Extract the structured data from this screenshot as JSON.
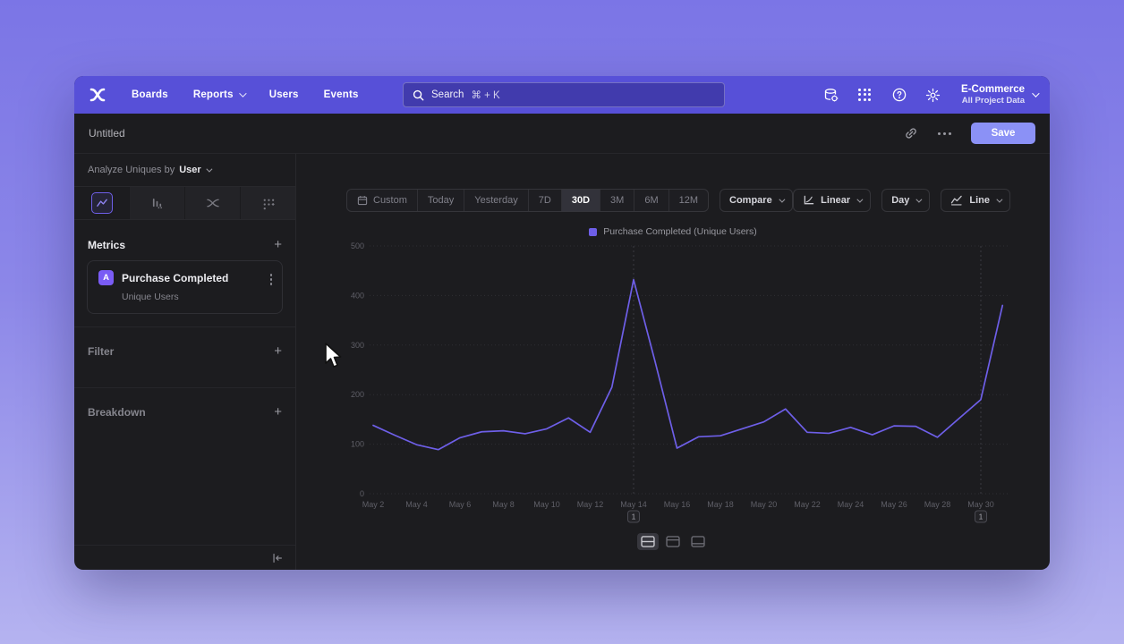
{
  "nav": {
    "items": [
      "Boards",
      "Reports",
      "Users",
      "Events"
    ],
    "search": {
      "label": "Search",
      "shortcut": "⌘ + K"
    },
    "project": {
      "name": "E-Commerce",
      "scope": "All Project Data"
    }
  },
  "toolbar": {
    "title": "Untitled",
    "save": "Save"
  },
  "sidebar": {
    "analyze_prefix": "Analyze Uniques by",
    "analyze_value": "User",
    "metrics_header": "Metrics",
    "add": "+",
    "metric": {
      "badge": "A",
      "title": "Purchase Completed",
      "subtitle": "Unique Users"
    },
    "filter_header": "Filter",
    "breakdown_header": "Breakdown"
  },
  "controls": {
    "ranges": [
      "Custom",
      "Today",
      "Yesterday",
      "7D",
      "30D",
      "3M",
      "6M",
      "12M"
    ],
    "selected_range": "30D",
    "compare": "Compare",
    "scale": "Linear",
    "granularity": "Day",
    "chart_type": "Line"
  },
  "colors": {
    "nav_bg": "#5750d8",
    "save_bg": "#8b91f6",
    "accent": "#6e5fe8"
  },
  "chart_data": {
    "type": "line",
    "title": "",
    "legend": "Purchase Completed (Unique Users)",
    "line_color": "#6e5fe8",
    "ylim": [
      0,
      500
    ],
    "yticks": [
      0,
      100,
      200,
      300,
      400,
      500
    ],
    "grid": true,
    "categories": [
      "May 2",
      "May 3",
      "May 4",
      "May 5",
      "May 6",
      "May 7",
      "May 8",
      "May 9",
      "May 10",
      "May 11",
      "May 12",
      "May 13",
      "May 14",
      "May 15",
      "May 16",
      "May 17",
      "May 18",
      "May 19",
      "May 20",
      "May 21",
      "May 22",
      "May 23",
      "May 24",
      "May 25",
      "May 26",
      "May 27",
      "May 28",
      "May 29",
      "May 30",
      "May 31"
    ],
    "values": [
      138,
      118,
      99,
      89,
      113,
      125,
      127,
      121,
      131,
      153,
      124,
      215,
      432,
      265,
      92,
      115,
      117,
      131,
      145,
      171,
      124,
      122,
      134,
      119,
      137,
      136,
      114,
      152,
      190,
      380
    ],
    "x_tick_every": 2,
    "annotations": [
      {
        "label": "1",
        "x": "May 14"
      },
      {
        "label": "1",
        "x": "May 30"
      }
    ]
  }
}
